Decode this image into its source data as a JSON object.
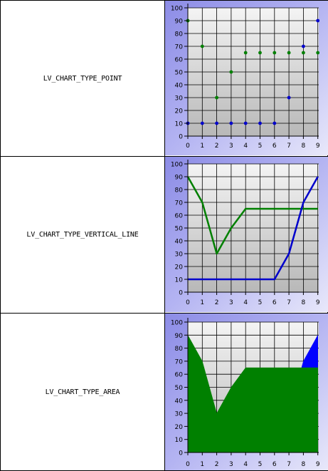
{
  "rows": [
    {
      "label": "LV_CHART_TYPE_POINT"
    },
    {
      "label": "LV_CHART_TYPE_VERTICAL_LINE"
    },
    {
      "label": "LV_CHART_TYPE_AREA"
    }
  ],
  "chart_data": [
    {
      "type": "scatter",
      "x": [
        0,
        1,
        2,
        3,
        4,
        5,
        6,
        7,
        8,
        9
      ],
      "x_ticks": [
        "0",
        "1",
        "2",
        "3",
        "4",
        "5",
        "6",
        "7",
        "8",
        "9"
      ],
      "y_ticks": [
        "0",
        "10",
        "20",
        "30",
        "40",
        "50",
        "60",
        "70",
        "80",
        "90",
        "100"
      ],
      "ylim": [
        0,
        100
      ],
      "grid": true,
      "series": [
        {
          "color": "#008000",
          "values": [
            90,
            70,
            30,
            50,
            65,
            65,
            65,
            65,
            65,
            65
          ]
        },
        {
          "color": "#0000cc",
          "values": [
            10,
            10,
            10,
            10,
            10,
            10,
            10,
            30,
            70,
            90
          ]
        }
      ]
    },
    {
      "type": "line",
      "x": [
        0,
        1,
        2,
        3,
        4,
        5,
        6,
        7,
        8,
        9
      ],
      "x_ticks": [
        "0",
        "1",
        "2",
        "3",
        "4",
        "5",
        "6",
        "7",
        "8",
        "9"
      ],
      "y_ticks": [
        "0",
        "10",
        "20",
        "30",
        "40",
        "50",
        "60",
        "70",
        "80",
        "90",
        "100"
      ],
      "ylim": [
        0,
        100
      ],
      "grid": true,
      "series": [
        {
          "color": "#008000",
          "values": [
            90,
            70,
            30,
            50,
            65,
            65,
            65,
            65,
            65,
            65
          ]
        },
        {
          "color": "#0000cc",
          "values": [
            10,
            10,
            10,
            10,
            10,
            10,
            10,
            30,
            70,
            90
          ]
        }
      ]
    },
    {
      "type": "area",
      "x": [
        0,
        1,
        2,
        3,
        4,
        5,
        6,
        7,
        8,
        9
      ],
      "x_ticks": [
        "0",
        "1",
        "2",
        "3",
        "4",
        "5",
        "6",
        "7",
        "8",
        "9"
      ],
      "y_ticks": [
        "0",
        "10",
        "20",
        "30",
        "40",
        "50",
        "60",
        "70",
        "80",
        "90",
        "100"
      ],
      "ylim": [
        0,
        100
      ],
      "grid": true,
      "series": [
        {
          "color": "#008000",
          "values": [
            90,
            70,
            30,
            50,
            65,
            65,
            65,
            65,
            65,
            65
          ]
        },
        {
          "color": "#0000ff",
          "values": [
            10,
            10,
            10,
            10,
            10,
            10,
            10,
            30,
            70,
            90
          ]
        }
      ]
    }
  ],
  "colors": {
    "frame_bg": "#9a9ae8",
    "plot_top": "#f4f4f4",
    "plot_bottom": "#b8b8b8",
    "grid": "#000000"
  }
}
